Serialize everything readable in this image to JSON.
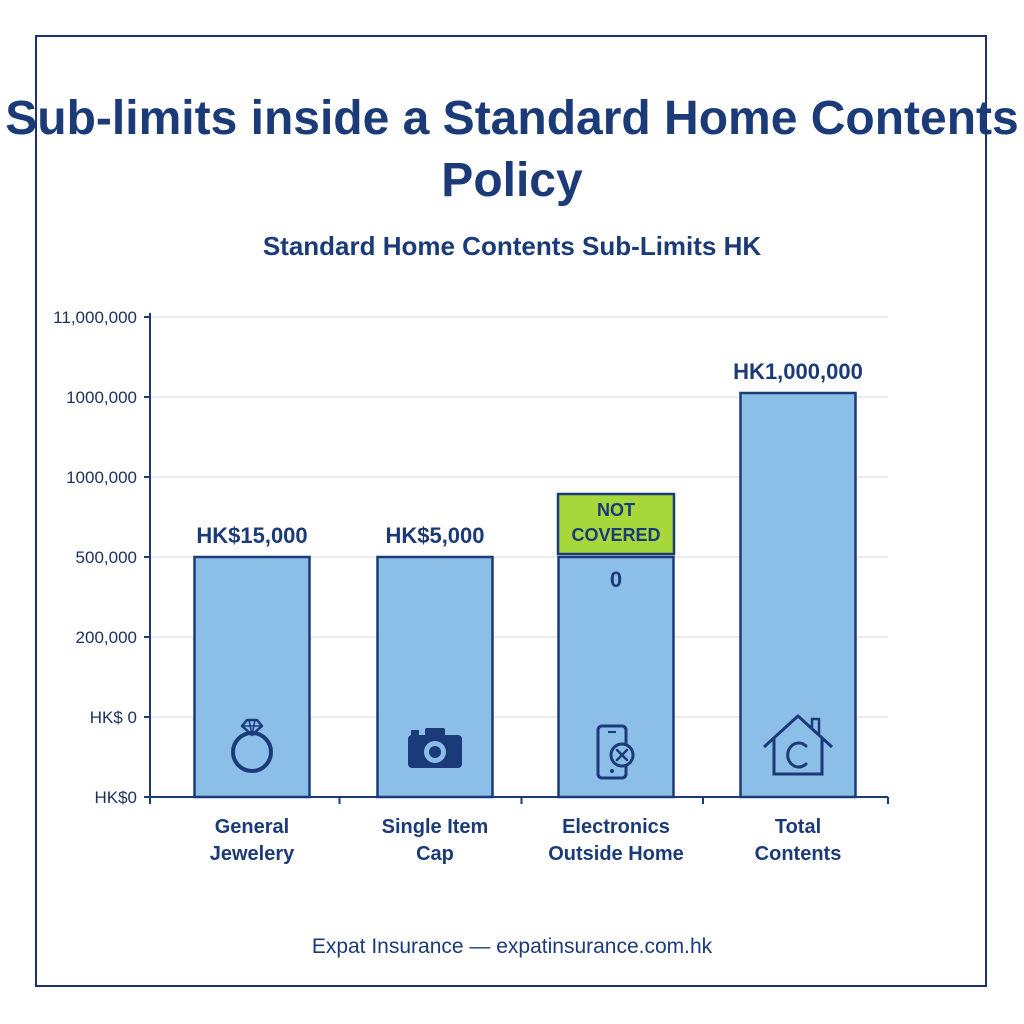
{
  "footer": "Expat Insurance — expatinsurance.com.hk",
  "chart_data": {
    "type": "bar",
    "title": "Sub-limits inside a Standard Home Contents Policy",
    "subtitle": "Standard Home Contents Sub-Limits HK",
    "y_tick_labels": [
      "HK$0",
      "HK$ 0",
      "200,000",
      "500,000",
      "1000,000",
      "1000,000",
      "11,000,000"
    ],
    "categories": [
      {
        "lines": [
          "General",
          "Jewelery"
        ]
      },
      {
        "lines": [
          "Single Item",
          "Cap"
        ]
      },
      {
        "lines": [
          "Electronics",
          "Outside Home"
        ]
      },
      {
        "lines": [
          "Total",
          "Contents"
        ]
      }
    ],
    "bar_levels": [
      3,
      3,
      3,
      5.05
    ],
    "value_labels": [
      "HK$15,000",
      "HK$5,000",
      "0",
      "HK1,000,000"
    ],
    "values": [
      15000,
      5000,
      0,
      1000000
    ],
    "badge": {
      "text_lines": [
        "NOT",
        "COVERED"
      ],
      "category_index": 2,
      "color": "#a6d83c"
    },
    "icons": [
      "ring-icon",
      "camera-icon",
      "phone-x-icon",
      "house-icon"
    ],
    "colors": {
      "bar": "#8cbfe8",
      "bar_edge": "#1b3a78",
      "text": "#1b3a78",
      "grid": "#e2e6ec"
    },
    "grid": true
  }
}
